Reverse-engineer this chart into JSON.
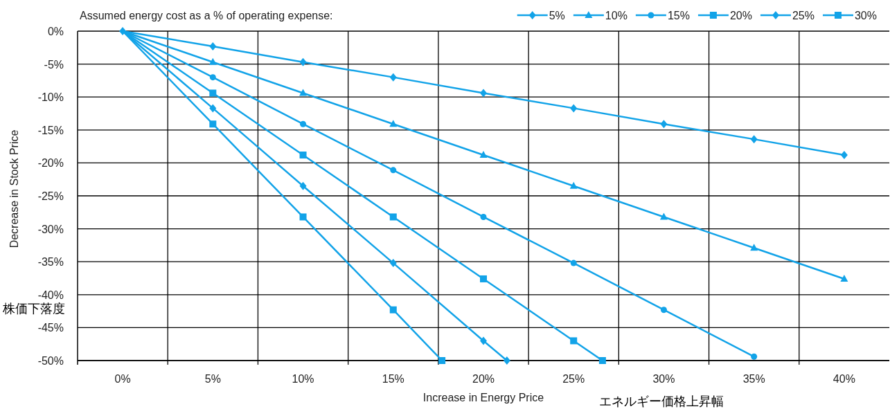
{
  "chart_data": {
    "type": "line",
    "legend_title": "Assumed energy cost as a % of operating expense:",
    "xlabel": "Increase in Energy Price",
    "ylabel": "Decrease in Stock Price",
    "annotations": [
      "株価下落度",
      "エネルギー価格上昇幅"
    ],
    "xlim": [
      -2.5,
      42.5
    ],
    "xticks": [
      {
        "value": 0,
        "label": "0%"
      },
      {
        "value": 2.5,
        "label": null
      },
      {
        "value": 5,
        "label": "5%"
      },
      {
        "value": 7.5,
        "label": null
      },
      {
        "value": 10,
        "label": "10%"
      },
      {
        "value": 12.5,
        "label": null
      },
      {
        "value": 15,
        "label": "15%"
      },
      {
        "value": 17.5,
        "label": null
      },
      {
        "value": 20,
        "label": "20%"
      },
      {
        "value": 22.5,
        "label": null
      },
      {
        "value": 25,
        "label": "25%"
      },
      {
        "value": 27.5,
        "label": null
      },
      {
        "value": 30,
        "label": "30%"
      },
      {
        "value": 32.5,
        "label": null
      },
      {
        "value": 35,
        "label": "35%"
      },
      {
        "value": 37.5,
        "label": null
      },
      {
        "value": 40,
        "label": "40%"
      }
    ],
    "ylim": [
      -50,
      0
    ],
    "yticks": [
      {
        "value": 0,
        "label": "0%"
      },
      {
        "value": -5,
        "label": "-5%"
      },
      {
        "value": -10,
        "label": "-10%"
      },
      {
        "value": -15,
        "label": "-15%"
      },
      {
        "value": -20,
        "label": "-20%"
      },
      {
        "value": -25,
        "label": "-25%"
      },
      {
        "value": -30,
        "label": "-30%"
      },
      {
        "value": -35,
        "label": "-35%"
      },
      {
        "value": -40,
        "label": "-40%"
      },
      {
        "value": -45,
        "label": "-45%"
      },
      {
        "value": -50,
        "label": "-50%"
      }
    ],
    "grid": true,
    "legend": "top right",
    "line_style": "solid",
    "series": [
      {
        "name": "5%",
        "color": "#12a3e8",
        "marker": "diamond",
        "x": [
          0,
          5,
          10,
          15,
          20,
          25,
          30,
          35,
          40
        ],
        "values": [
          0,
          -2.3,
          -4.7,
          -7.0,
          -9.4,
          -11.7,
          -14.1,
          -16.4,
          -18.8
        ]
      },
      {
        "name": "10%",
        "color": "#12a3e8",
        "marker": "triangle",
        "x": [
          0,
          5,
          10,
          15,
          20,
          25,
          30,
          35,
          40
        ],
        "values": [
          0,
          -4.7,
          -9.4,
          -14.1,
          -18.8,
          -23.5,
          -28.2,
          -32.9,
          -37.6
        ]
      },
      {
        "name": "15%",
        "color": "#12a3e8",
        "marker": "circle",
        "x": [
          0,
          5,
          10,
          15,
          20,
          25,
          30,
          35
        ],
        "values": [
          0,
          -7.0,
          -14.1,
          -21.1,
          -28.2,
          -35.2,
          -42.3,
          -49.4
        ]
      },
      {
        "name": "20%",
        "color": "#12a3e8",
        "marker": "square",
        "x": [
          0,
          5,
          10,
          15,
          20,
          25,
          26.6
        ],
        "values": [
          0,
          -9.4,
          -18.8,
          -28.2,
          -37.6,
          -47.0,
          -50
        ]
      },
      {
        "name": "25%",
        "color": "#12a3e8",
        "marker": "diamond",
        "x": [
          0,
          5,
          10,
          15,
          20,
          21.3
        ],
        "values": [
          0,
          -11.7,
          -23.5,
          -35.2,
          -47.0,
          -50
        ]
      },
      {
        "name": "30%",
        "color": "#12a3e8",
        "marker": "square",
        "x": [
          0,
          5,
          10,
          15,
          17.7
        ],
        "values": [
          0,
          -14.1,
          -28.2,
          -42.3,
          -50
        ]
      }
    ]
  }
}
